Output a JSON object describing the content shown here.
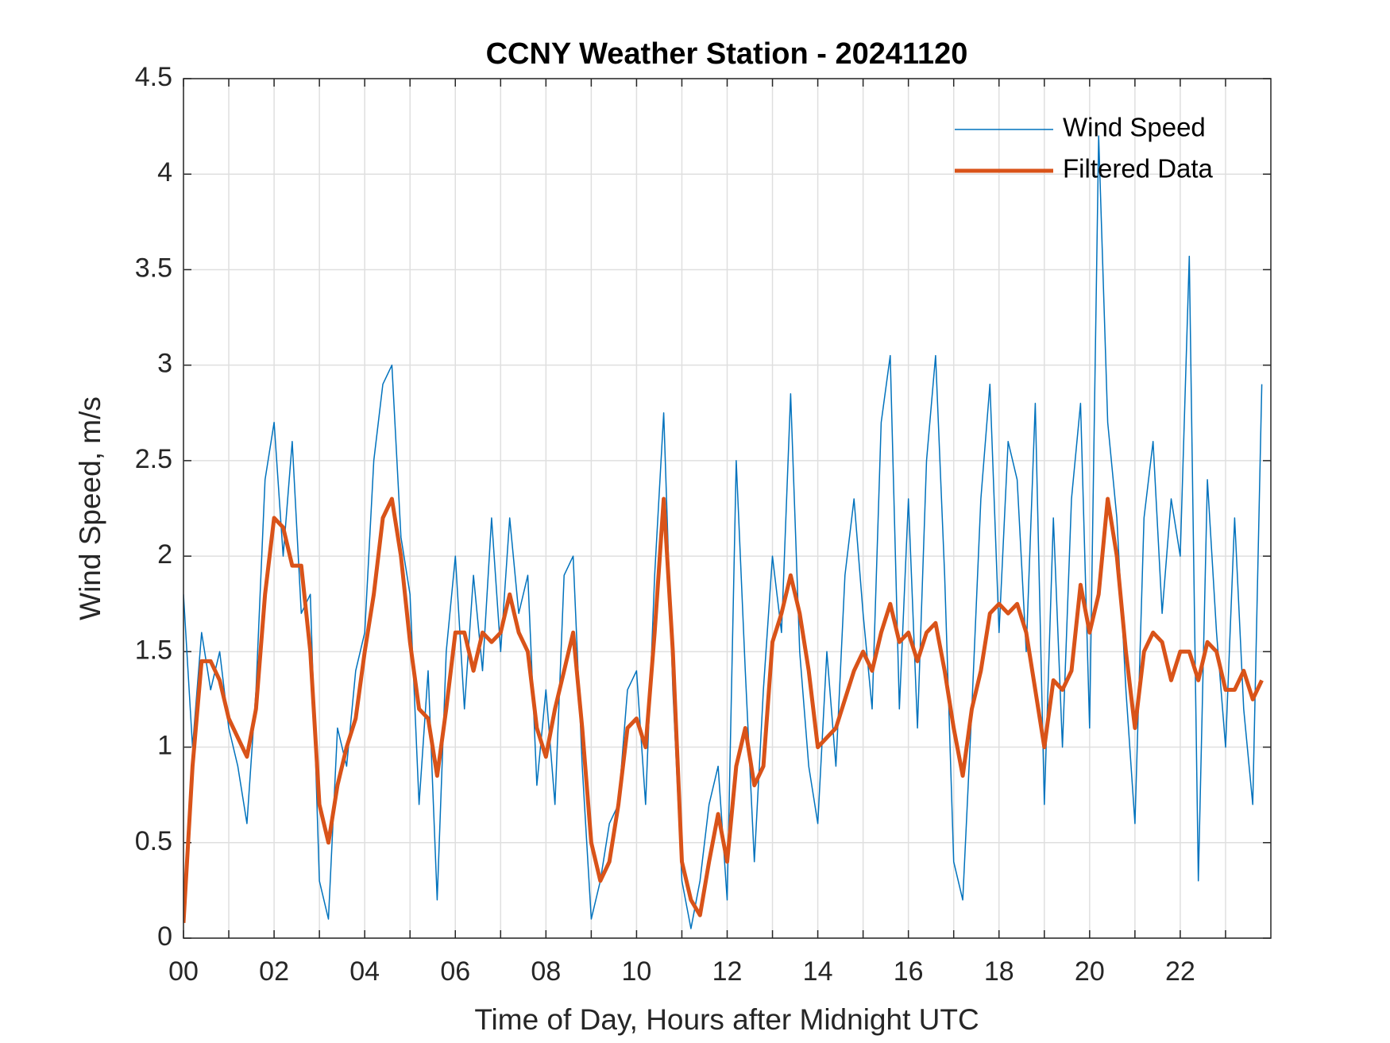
{
  "chart_data": {
    "type": "line",
    "title": "CCNY Weather Station - 20241120",
    "xlabel": "Time of Day, Hours after Midnight UTC",
    "ylabel": "Wind Speed, m/s",
    "xlim": [
      0,
      24
    ],
    "ylim": [
      0,
      4.5
    ],
    "xticks": [
      {
        "value": 0,
        "label": "00"
      },
      {
        "value": 2,
        "label": "02"
      },
      {
        "value": 4,
        "label": "04"
      },
      {
        "value": 6,
        "label": "06"
      },
      {
        "value": 8,
        "label": "08"
      },
      {
        "value": 10,
        "label": "10"
      },
      {
        "value": 12,
        "label": "12"
      },
      {
        "value": 14,
        "label": "14"
      },
      {
        "value": 16,
        "label": "16"
      },
      {
        "value": 18,
        "label": "18"
      },
      {
        "value": 20,
        "label": "20"
      },
      {
        "value": 22,
        "label": "22"
      }
    ],
    "xminorticks": [
      1,
      3,
      5,
      7,
      9,
      11,
      13,
      15,
      17,
      19,
      21,
      23
    ],
    "yticks": [
      0,
      0.5,
      1,
      1.5,
      2,
      2.5,
      3,
      3.5,
      4,
      4.5
    ],
    "grid": true,
    "legend": "upper right",
    "x": [
      0,
      0.2,
      0.4,
      0.6,
      0.8,
      1,
      1.2,
      1.4,
      1.6,
      1.8,
      2,
      2.2,
      2.4,
      2.6,
      2.8,
      3,
      3.2,
      3.4,
      3.6,
      3.8,
      4,
      4.2,
      4.4,
      4.6,
      4.8,
      5,
      5.2,
      5.4,
      5.6,
      5.8,
      6,
      6.2,
      6.4,
      6.6,
      6.8,
      7,
      7.2,
      7.4,
      7.6,
      7.8,
      8,
      8.2,
      8.4,
      8.6,
      8.8,
      9,
      9.2,
      9.4,
      9.6,
      9.8,
      10,
      10.2,
      10.4,
      10.6,
      10.8,
      11,
      11.2,
      11.4,
      11.6,
      11.8,
      12,
      12.2,
      12.4,
      12.6,
      12.8,
      13,
      13.2,
      13.4,
      13.6,
      13.8,
      14,
      14.2,
      14.4,
      14.6,
      14.8,
      15,
      15.2,
      15.4,
      15.6,
      15.8,
      16,
      16.2,
      16.4,
      16.6,
      16.8,
      17,
      17.2,
      17.4,
      17.6,
      17.8,
      18,
      18.2,
      18.4,
      18.6,
      18.8,
      19,
      19.2,
      19.4,
      19.6,
      19.8,
      20,
      20.2,
      20.4,
      20.6,
      20.8,
      21,
      21.2,
      21.4,
      21.6,
      21.8,
      22,
      22.2,
      22.4,
      22.6,
      22.8,
      23,
      23.2,
      23.4,
      23.6,
      23.8
    ],
    "series": [
      {
        "name": "Wind Speed",
        "color": "#0072bd",
        "width": 1.5,
        "values": [
          1.8,
          1.0,
          1.6,
          1.3,
          1.5,
          1.1,
          0.9,
          0.6,
          1.3,
          2.4,
          2.7,
          2.0,
          2.6,
          1.7,
          1.8,
          0.3,
          0.1,
          1.1,
          0.9,
          1.4,
          1.6,
          2.5,
          2.9,
          3.0,
          2.1,
          1.8,
          0.7,
          1.4,
          0.2,
          1.5,
          2.0,
          1.2,
          1.9,
          1.4,
          2.2,
          1.5,
          2.2,
          1.7,
          1.9,
          0.8,
          1.3,
          0.7,
          1.9,
          2.0,
          0.9,
          0.1,
          0.3,
          0.6,
          0.7,
          1.3,
          1.4,
          0.7,
          1.9,
          2.75,
          1.3,
          0.3,
          0.05,
          0.3,
          0.7,
          0.9,
          0.2,
          2.5,
          1.4,
          0.4,
          1.3,
          2.0,
          1.6,
          2.85,
          1.5,
          0.9,
          0.6,
          1.5,
          0.9,
          1.9,
          2.3,
          1.7,
          1.2,
          2.7,
          3.05,
          1.2,
          2.3,
          1.1,
          2.5,
          3.05,
          1.9,
          0.4,
          0.2,
          1.2,
          2.3,
          2.9,
          1.6,
          2.6,
          2.4,
          1.5,
          2.8,
          0.7,
          2.2,
          1.0,
          2.3,
          2.8,
          1.1,
          4.2,
          2.7,
          2.2,
          1.3,
          0.6,
          2.2,
          2.6,
          1.7,
          2.3,
          2.0,
          3.57,
          0.3,
          2.4,
          1.6,
          1.0,
          2.2,
          1.2,
          0.7,
          2.9
        ]
      },
      {
        "name": "Filtered Data",
        "color": "#d95319",
        "width": 5,
        "values": [
          0.08,
          0.9,
          1.45,
          1.45,
          1.35,
          1.15,
          1.05,
          0.95,
          1.2,
          1.8,
          2.2,
          2.15,
          1.95,
          1.95,
          1.5,
          0.7,
          0.5,
          0.8,
          1.0,
          1.15,
          1.5,
          1.8,
          2.2,
          2.3,
          2.0,
          1.55,
          1.2,
          1.15,
          0.85,
          1.2,
          1.6,
          1.6,
          1.4,
          1.6,
          1.55,
          1.6,
          1.8,
          1.6,
          1.5,
          1.1,
          0.95,
          1.2,
          1.4,
          1.6,
          1.1,
          0.5,
          0.3,
          0.4,
          0.7,
          1.1,
          1.15,
          1.0,
          1.6,
          2.3,
          1.5,
          0.4,
          0.2,
          0.12,
          0.4,
          0.65,
          0.4,
          0.9,
          1.1,
          0.8,
          0.9,
          1.55,
          1.7,
          1.9,
          1.7,
          1.4,
          1.0,
          1.05,
          1.1,
          1.25,
          1.4,
          1.5,
          1.4,
          1.6,
          1.75,
          1.55,
          1.6,
          1.45,
          1.6,
          1.65,
          1.4,
          1.1,
          0.85,
          1.2,
          1.4,
          1.7,
          1.75,
          1.7,
          1.75,
          1.6,
          1.3,
          1.0,
          1.35,
          1.3,
          1.4,
          1.85,
          1.6,
          1.8,
          2.3,
          2.0,
          1.5,
          1.1,
          1.5,
          1.6,
          1.55,
          1.35,
          1.5,
          1.5,
          1.35,
          1.55,
          1.5,
          1.3,
          1.3,
          1.4,
          1.25,
          1.35
        ]
      }
    ]
  }
}
